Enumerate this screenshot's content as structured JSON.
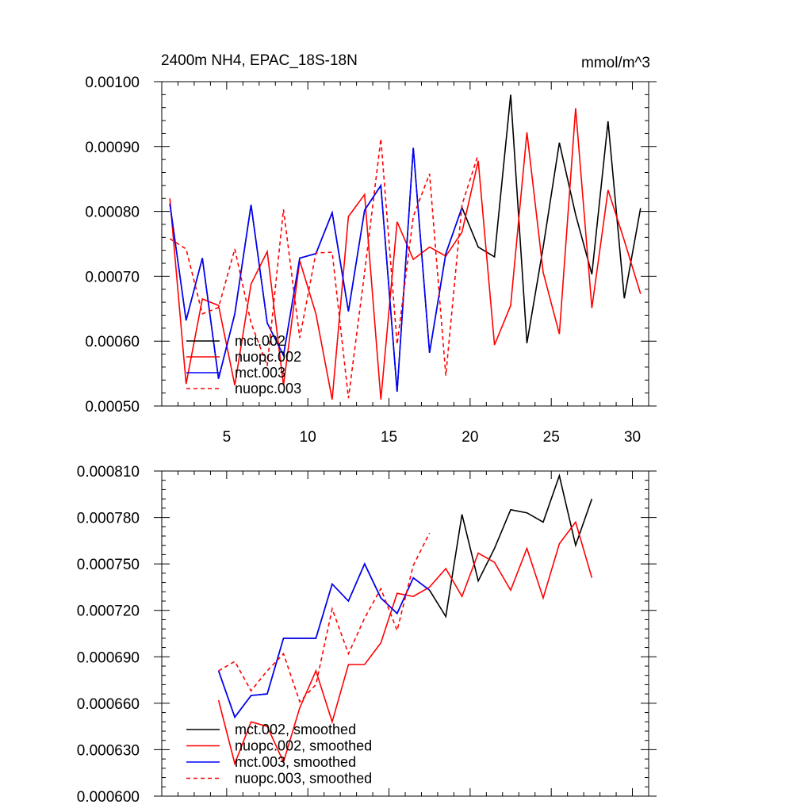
{
  "chart_data": [
    {
      "type": "line",
      "title": "2400m NH4, EPAC_18S-18N",
      "units": "mmol/m^3",
      "xlabel": "",
      "ylabel": "",
      "xlim": [
        1,
        31
      ],
      "ylim": [
        0.0005,
        0.001
      ],
      "xticks": [
        5,
        10,
        15,
        20,
        25,
        30
      ],
      "xtick_labels": [
        "5",
        "10",
        "15",
        "20",
        "25",
        "30"
      ],
      "yticks": [
        0.0005,
        0.0006,
        0.0007,
        0.0008,
        0.0009,
        0.001
      ],
      "ytick_labels": [
        "0.00050",
        "0.00060",
        "0.00070",
        "0.00080",
        "0.00090",
        "0.00100"
      ],
      "legend_position": "bottom-left",
      "series": [
        {
          "name": "mct.002",
          "color": "#000000",
          "dash": "solid",
          "x": [
            1.5,
            2.5,
            3.5,
            4.5,
            5.5,
            6.5,
            7.5,
            8.5,
            9.5,
            10.5,
            11.5,
            12.5,
            13.5,
            14.5,
            15.5,
            16.5,
            17.5,
            18.5,
            19.5,
            20.5,
            21.5,
            22.5,
            23.5,
            24.5,
            25.5,
            26.5,
            27.5,
            28.5,
            29.5,
            30.5
          ],
          "y": [
            0.000812,
            0.000632,
            0.000728,
            0.000542,
            0.000642,
            0.00081,
            0.000628,
            0.000578,
            0.000728,
            0.000735,
            0.000798,
            0.000646,
            0.000802,
            0.00084,
            0.000522,
            0.000898,
            0.000582,
            0.000735,
            0.000806,
            0.000745,
            0.00073,
            0.00098,
            0.000597,
            0.000745,
            0.000906,
            0.000795,
            0.000703,
            0.000939,
            0.000666,
            0.000805
          ]
        },
        {
          "name": "nuopc.002",
          "color": "#ff0000",
          "dash": "solid",
          "x": [
            1.5,
            2.5,
            3.5,
            4.5,
            5.5,
            6.5,
            7.5,
            8.5,
            9.5,
            10.5,
            11.5,
            12.5,
            13.5,
            14.5,
            15.5,
            16.5,
            17.5,
            18.5,
            19.5,
            20.5,
            21.5,
            22.5,
            23.5,
            24.5,
            25.5,
            26.5,
            27.5,
            28.5,
            29.5,
            30.5
          ],
          "y": [
            0.00082,
            0.000534,
            0.000665,
            0.000655,
            0.000532,
            0.000688,
            0.000738,
            0.000532,
            0.000724,
            0.000642,
            0.00051,
            0.000792,
            0.000826,
            0.00051,
            0.000784,
            0.000726,
            0.000745,
            0.000731,
            0.000768,
            0.000878,
            0.000594,
            0.000655,
            0.000922,
            0.000706,
            0.000611,
            0.000959,
            0.000651,
            0.000833,
            0.000755,
            0.000673
          ]
        },
        {
          "name": "mct.003",
          "color": "#0000ff",
          "dash": "solid",
          "x": [
            1.5,
            2.5,
            3.5,
            4.5,
            5.5,
            6.5,
            7.5,
            8.5,
            9.5,
            10.5,
            11.5,
            12.5,
            13.5,
            14.5,
            15.5,
            16.5,
            17.5,
            18.5,
            19.5
          ],
          "y": [
            0.000812,
            0.000632,
            0.000728,
            0.000542,
            0.000642,
            0.00081,
            0.000628,
            0.000578,
            0.000728,
            0.000735,
            0.000798,
            0.000646,
            0.000802,
            0.00084,
            0.000522,
            0.000898,
            0.000582,
            0.000735,
            0.000806
          ]
        },
        {
          "name": "nuopc.003",
          "color": "#ff0000",
          "dash": "dashed",
          "x": [
            1.5,
            2.5,
            3.5,
            4.5,
            5.5,
            6.5,
            7.5,
            8.5,
            9.5,
            10.5,
            11.5,
            12.5,
            13.5,
            14.5,
            15.5,
            16.5,
            17.5,
            18.5,
            19.5,
            20.5
          ],
          "y": [
            0.000758,
            0.000742,
            0.000642,
            0.000652,
            0.000742,
            0.000628,
            0.000562,
            0.000803,
            0.000605,
            0.000736,
            0.000737,
            0.000512,
            0.000706,
            0.000912,
            0.000595,
            0.000792,
            0.000858,
            0.000547,
            0.00081,
            0.000888
          ]
        }
      ]
    },
    {
      "type": "line",
      "title": "",
      "xlabel": "",
      "ylabel": "",
      "xlim": [
        1,
        31
      ],
      "ylim": [
        0.0006,
        0.00081
      ],
      "xticks": [
        5,
        10,
        15,
        20,
        25,
        30
      ],
      "yticks": [
        0.0006,
        0.00063,
        0.00066,
        0.00069,
        0.00072,
        0.00075,
        0.00078,
        0.00081
      ],
      "ytick_labels": [
        "0.000600",
        "0.000630",
        "0.000660",
        "0.000690",
        "0.000720",
        "0.000750",
        "0.000780",
        "0.000810"
      ],
      "legend_position": "bottom-left",
      "series": [
        {
          "name": "mct.002, smoothed",
          "color": "#000000",
          "dash": "solid",
          "x": [
            4.5,
            5.5,
            6.5,
            7.5,
            8.5,
            9.5,
            10.5,
            11.5,
            12.5,
            13.5,
            14.5,
            15.5,
            16.5,
            17.5,
            18.5,
            19.5,
            20.5,
            21.5,
            22.5,
            23.5,
            24.5,
            25.5,
            26.5,
            27.5
          ],
          "y": [
            0.000681,
            0.000651,
            0.000665,
            0.000666,
            0.000702,
            0.000702,
            0.000702,
            0.000737,
            0.000726,
            0.00075,
            0.000728,
            0.000718,
            0.000741,
            0.000733,
            0.000716,
            0.000782,
            0.000739,
            0.00076,
            0.000785,
            0.000783,
            0.000777,
            0.000807,
            0.000762,
            0.000792
          ]
        },
        {
          "name": "nuopc.002, smoothed",
          "color": "#ff0000",
          "dash": "solid",
          "x": [
            4.5,
            5.5,
            6.5,
            7.5,
            8.5,
            9.5,
            10.5,
            11.5,
            12.5,
            13.5,
            14.5,
            15.5,
            16.5,
            17.5,
            18.5,
            19.5,
            20.5,
            21.5,
            22.5,
            23.5,
            24.5,
            25.5,
            26.5,
            27.5
          ],
          "y": [
            0.000662,
            0.000621,
            0.000648,
            0.000645,
            0.000622,
            0.000657,
            0.000681,
            0.000648,
            0.000685,
            0.000685,
            0.000699,
            0.000731,
            0.000729,
            0.000735,
            0.000747,
            0.000729,
            0.000757,
            0.000751,
            0.000733,
            0.00076,
            0.000728,
            0.000763,
            0.000777,
            0.000741
          ]
        },
        {
          "name": "mct.003, smoothed",
          "color": "#0000ff",
          "dash": "solid",
          "x": [
            4.5,
            5.5,
            6.5,
            7.5,
            8.5,
            9.5,
            10.5,
            11.5,
            12.5,
            13.5,
            14.5,
            15.5,
            16.5,
            17.5
          ],
          "y": [
            0.000681,
            0.000651,
            0.000665,
            0.000666,
            0.000702,
            0.000702,
            0.000702,
            0.000737,
            0.000726,
            0.00075,
            0.000728,
            0.000718,
            0.000741,
            0.000733
          ]
        },
        {
          "name": "nuopc.003, smoothed",
          "color": "#ff0000",
          "dash": "dashed",
          "x": [
            4.5,
            5.5,
            6.5,
            7.5,
            8.5,
            9.5,
            10.5,
            11.5,
            12.5,
            13.5,
            14.5,
            15.5,
            16.5,
            17.5
          ],
          "y": [
            0.000681,
            0.000687,
            0.000668,
            0.000681,
            0.000692,
            0.000661,
            0.000672,
            0.000721,
            0.000692,
            0.000715,
            0.000734,
            0.000707,
            0.000749,
            0.00077
          ]
        }
      ]
    }
  ]
}
